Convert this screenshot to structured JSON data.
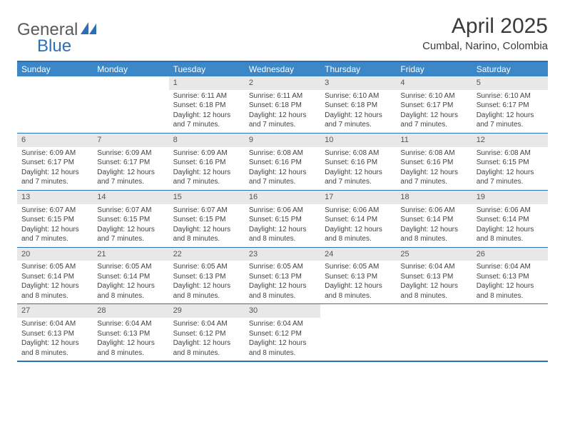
{
  "logo": {
    "text_general": "General",
    "text_blue": "Blue"
  },
  "title": "April 2025",
  "location": "Cumbal, Narino, Colombia",
  "colors": {
    "header_bg": "#3b87c8",
    "border": "#2d6fb5",
    "daynum_bg": "#e8e8e8",
    "text": "#424242",
    "title_text": "#3a3a3a"
  },
  "day_names": [
    "Sunday",
    "Monday",
    "Tuesday",
    "Wednesday",
    "Thursday",
    "Friday",
    "Saturday"
  ],
  "weeks": [
    [
      null,
      null,
      {
        "n": "1",
        "sunrise": "6:11 AM",
        "sunset": "6:18 PM",
        "daylight": "12 hours and 7 minutes."
      },
      {
        "n": "2",
        "sunrise": "6:11 AM",
        "sunset": "6:18 PM",
        "daylight": "12 hours and 7 minutes."
      },
      {
        "n": "3",
        "sunrise": "6:10 AM",
        "sunset": "6:18 PM",
        "daylight": "12 hours and 7 minutes."
      },
      {
        "n": "4",
        "sunrise": "6:10 AM",
        "sunset": "6:17 PM",
        "daylight": "12 hours and 7 minutes."
      },
      {
        "n": "5",
        "sunrise": "6:10 AM",
        "sunset": "6:17 PM",
        "daylight": "12 hours and 7 minutes."
      }
    ],
    [
      {
        "n": "6",
        "sunrise": "6:09 AM",
        "sunset": "6:17 PM",
        "daylight": "12 hours and 7 minutes."
      },
      {
        "n": "7",
        "sunrise": "6:09 AM",
        "sunset": "6:17 PM",
        "daylight": "12 hours and 7 minutes."
      },
      {
        "n": "8",
        "sunrise": "6:09 AM",
        "sunset": "6:16 PM",
        "daylight": "12 hours and 7 minutes."
      },
      {
        "n": "9",
        "sunrise": "6:08 AM",
        "sunset": "6:16 PM",
        "daylight": "12 hours and 7 minutes."
      },
      {
        "n": "10",
        "sunrise": "6:08 AM",
        "sunset": "6:16 PM",
        "daylight": "12 hours and 7 minutes."
      },
      {
        "n": "11",
        "sunrise": "6:08 AM",
        "sunset": "6:16 PM",
        "daylight": "12 hours and 7 minutes."
      },
      {
        "n": "12",
        "sunrise": "6:08 AM",
        "sunset": "6:15 PM",
        "daylight": "12 hours and 7 minutes."
      }
    ],
    [
      {
        "n": "13",
        "sunrise": "6:07 AM",
        "sunset": "6:15 PM",
        "daylight": "12 hours and 7 minutes."
      },
      {
        "n": "14",
        "sunrise": "6:07 AM",
        "sunset": "6:15 PM",
        "daylight": "12 hours and 7 minutes."
      },
      {
        "n": "15",
        "sunrise": "6:07 AM",
        "sunset": "6:15 PM",
        "daylight": "12 hours and 8 minutes."
      },
      {
        "n": "16",
        "sunrise": "6:06 AM",
        "sunset": "6:15 PM",
        "daylight": "12 hours and 8 minutes."
      },
      {
        "n": "17",
        "sunrise": "6:06 AM",
        "sunset": "6:14 PM",
        "daylight": "12 hours and 8 minutes."
      },
      {
        "n": "18",
        "sunrise": "6:06 AM",
        "sunset": "6:14 PM",
        "daylight": "12 hours and 8 minutes."
      },
      {
        "n": "19",
        "sunrise": "6:06 AM",
        "sunset": "6:14 PM",
        "daylight": "12 hours and 8 minutes."
      }
    ],
    [
      {
        "n": "20",
        "sunrise": "6:05 AM",
        "sunset": "6:14 PM",
        "daylight": "12 hours and 8 minutes."
      },
      {
        "n": "21",
        "sunrise": "6:05 AM",
        "sunset": "6:14 PM",
        "daylight": "12 hours and 8 minutes."
      },
      {
        "n": "22",
        "sunrise": "6:05 AM",
        "sunset": "6:13 PM",
        "daylight": "12 hours and 8 minutes."
      },
      {
        "n": "23",
        "sunrise": "6:05 AM",
        "sunset": "6:13 PM",
        "daylight": "12 hours and 8 minutes."
      },
      {
        "n": "24",
        "sunrise": "6:05 AM",
        "sunset": "6:13 PM",
        "daylight": "12 hours and 8 minutes."
      },
      {
        "n": "25",
        "sunrise": "6:04 AM",
        "sunset": "6:13 PM",
        "daylight": "12 hours and 8 minutes."
      },
      {
        "n": "26",
        "sunrise": "6:04 AM",
        "sunset": "6:13 PM",
        "daylight": "12 hours and 8 minutes."
      }
    ],
    [
      {
        "n": "27",
        "sunrise": "6:04 AM",
        "sunset": "6:13 PM",
        "daylight": "12 hours and 8 minutes."
      },
      {
        "n": "28",
        "sunrise": "6:04 AM",
        "sunset": "6:13 PM",
        "daylight": "12 hours and 8 minutes."
      },
      {
        "n": "29",
        "sunrise": "6:04 AM",
        "sunset": "6:12 PM",
        "daylight": "12 hours and 8 minutes."
      },
      {
        "n": "30",
        "sunrise": "6:04 AM",
        "sunset": "6:12 PM",
        "daylight": "12 hours and 8 minutes."
      },
      null,
      null,
      null
    ]
  ],
  "labels": {
    "sunrise_prefix": "Sunrise: ",
    "sunset_prefix": "Sunset: ",
    "daylight_prefix": "Daylight: "
  }
}
